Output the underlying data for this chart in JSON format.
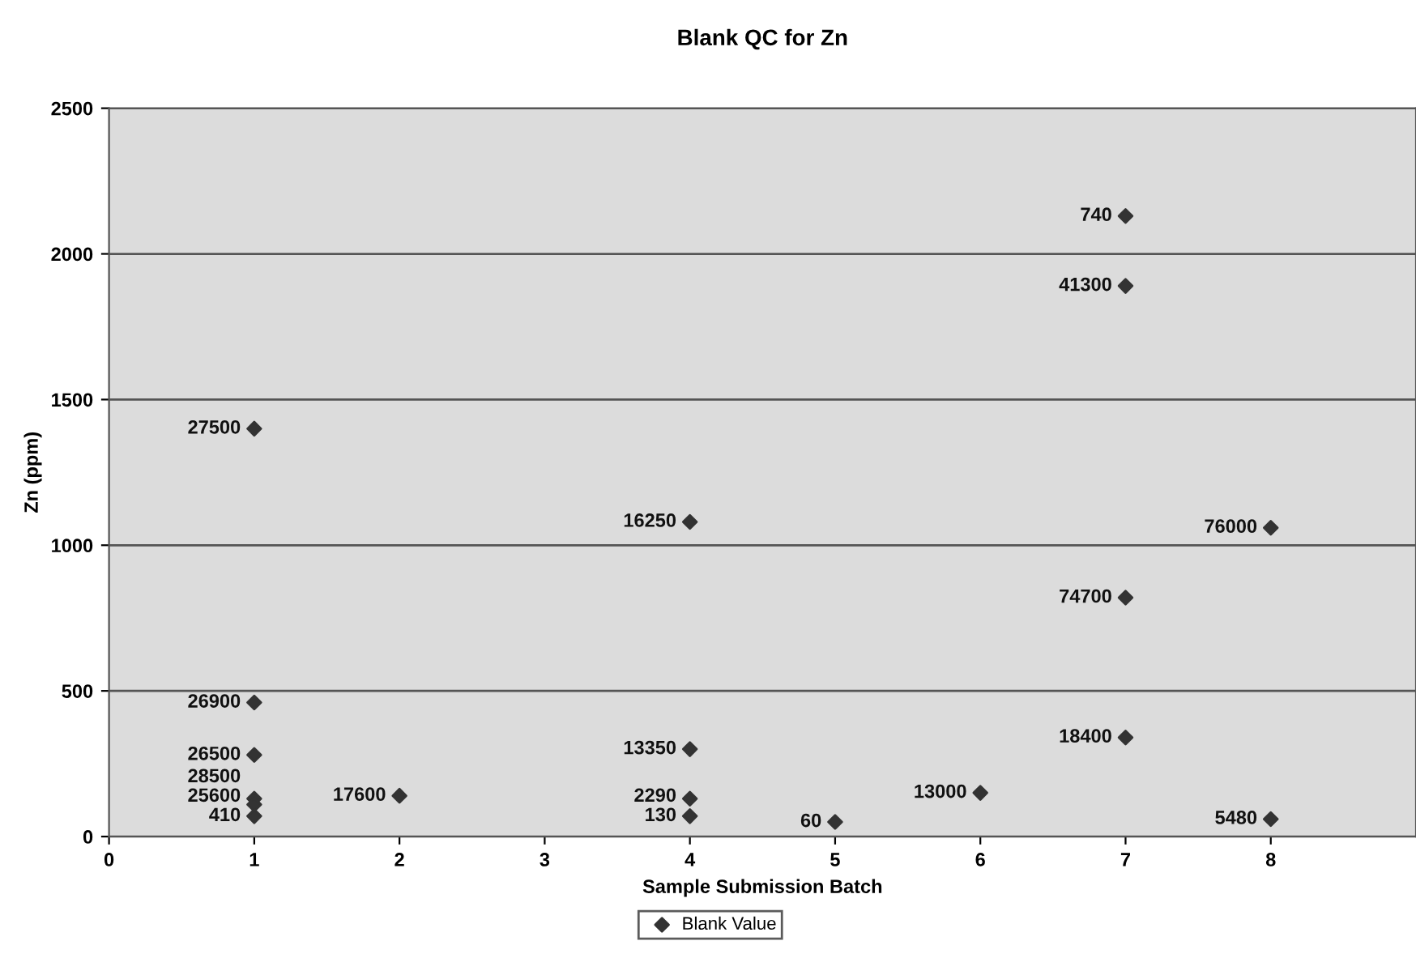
{
  "chart_data": {
    "type": "scatter",
    "title": "Blank QC for Zn",
    "xlabel": "Sample Submission Batch",
    "ylabel": "Zn (ppm)",
    "series": [
      {
        "name": "Blank Value",
        "color": "#333333",
        "x": [
          1,
          1,
          1,
          1,
          1,
          1,
          2,
          4,
          4,
          4,
          4,
          5,
          6,
          7,
          7,
          7,
          7,
          8,
          8
        ],
        "values": [
          1400,
          460,
          280,
          130,
          110,
          70,
          140,
          1080,
          300,
          130,
          70,
          50,
          150,
          2130,
          1890,
          820,
          340,
          1060,
          60
        ]
      }
    ],
    "annotations": [
      {
        "text": "27500",
        "x": 1,
        "y": 1400
      },
      {
        "text": "26900",
        "x": 1,
        "y": 460
      },
      {
        "text": "26500",
        "x": 1,
        "y": 280
      },
      {
        "text": "28500",
        "x": 1,
        "y": 130
      },
      {
        "text": "25600",
        "x": 1,
        "y": 110
      },
      {
        "text": "410",
        "x": 1,
        "y": 70
      },
      {
        "text": "17600",
        "x": 2,
        "y": 140
      },
      {
        "text": "16250",
        "x": 4,
        "y": 1080
      },
      {
        "text": "13350",
        "x": 4,
        "y": 300
      },
      {
        "text": "2290",
        "x": 4,
        "y": 130
      },
      {
        "text": "130",
        "x": 4,
        "y": 70
      },
      {
        "text": "60",
        "x": 5,
        "y": 50
      },
      {
        "text": "13000",
        "x": 6,
        "y": 150
      },
      {
        "text": "740",
        "x": 7,
        "y": 2130
      },
      {
        "text": "41300",
        "x": 7,
        "y": 1890
      },
      {
        "text": "74700",
        "x": 7,
        "y": 820
      },
      {
        "text": "18400",
        "x": 7,
        "y": 340
      },
      {
        "text": "76000",
        "x": 8,
        "y": 1060
      },
      {
        "text": "5480",
        "x": 8,
        "y": 60
      }
    ],
    "xlim": [
      0,
      9
    ],
    "xticks": [
      0,
      1,
      2,
      3,
      4,
      5,
      6,
      7,
      8
    ],
    "ylim": [
      0,
      2500
    ],
    "yticks": [
      0,
      500,
      1000,
      1500,
      2000,
      2500
    ],
    "grid": "y",
    "legend": "bottom",
    "marker": "diamond"
  }
}
